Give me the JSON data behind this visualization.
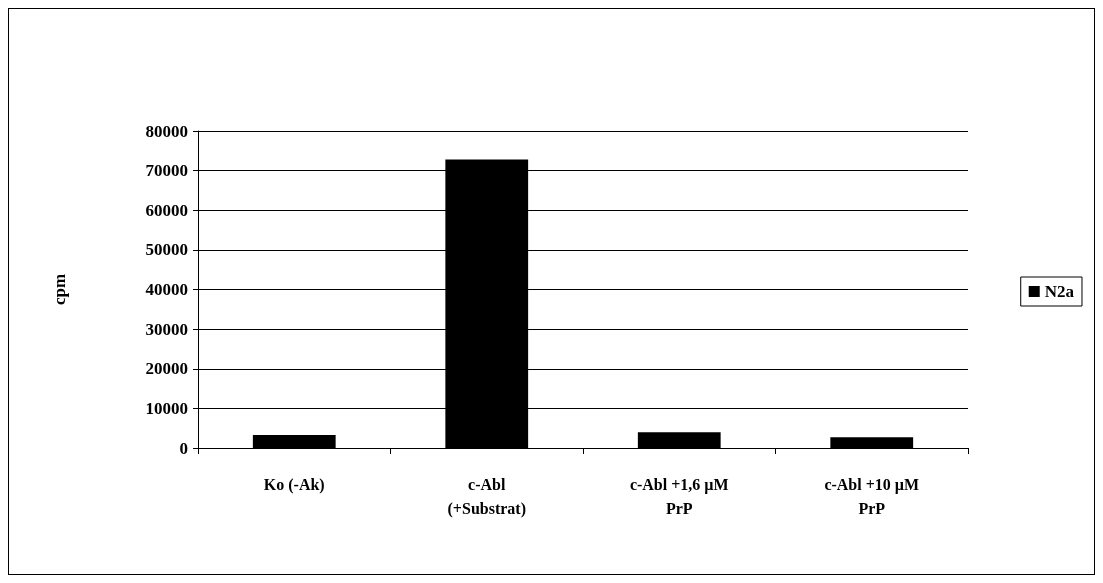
{
  "chart_data": {
    "type": "bar",
    "ylabel": "cpm",
    "categories": [
      "Ko (-Ak)",
      "c-Abl\n(+Substrat)",
      "c-Abl +1,6 µM\nPrP",
      "c-Abl +10 µM\nPrP"
    ],
    "series": [
      {
        "name": "N2a",
        "color": "#000000",
        "values": [
          3300,
          72800,
          4000,
          2700
        ]
      }
    ],
    "ylim": [
      0,
      80000
    ],
    "yticks": [
      0,
      10000,
      20000,
      30000,
      40000,
      50000,
      60000,
      70000,
      80000
    ],
    "grid": "y",
    "legend": "right"
  }
}
